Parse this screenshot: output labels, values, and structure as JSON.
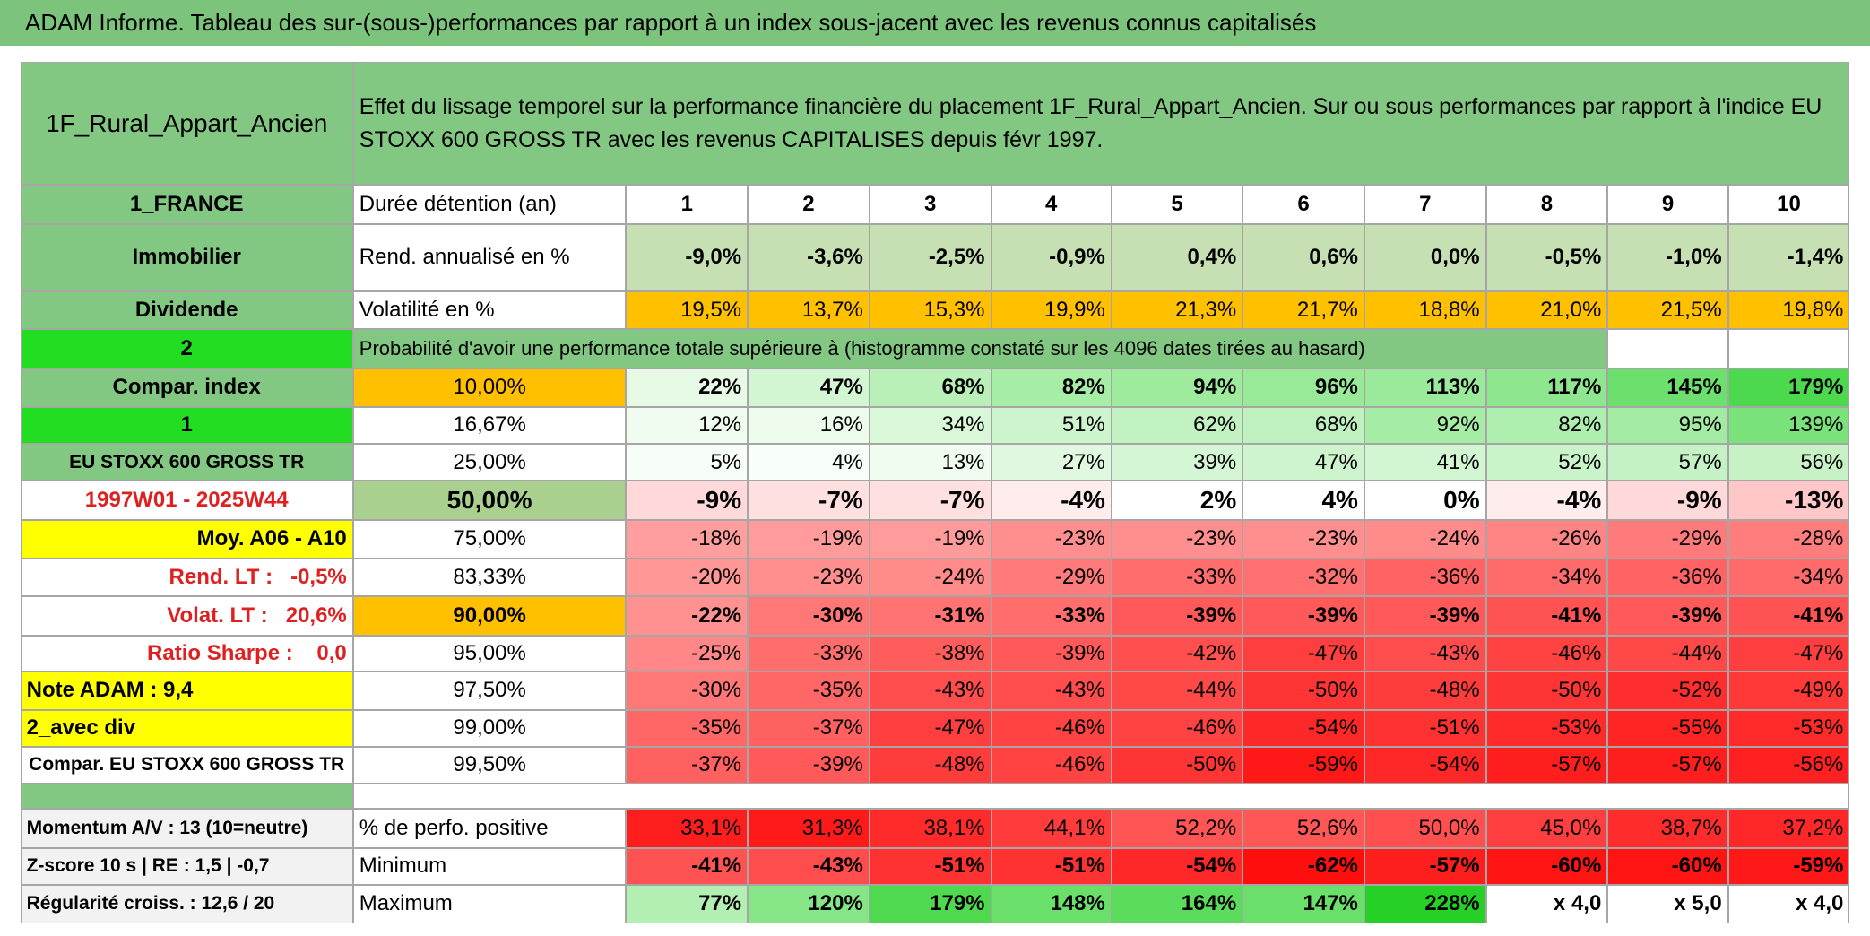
{
  "title": "ADAM Informe. Tableau des sur-(sous-)performances par rapport à un index sous-jacent avec les revenus connus capitalisés",
  "header": {
    "name": "1F_Rural_Appart_Ancien",
    "description": "Effet du lissage temporel sur la performance financière du placement 1F_Rural_Appart_Ancien. Sur ou sous performances par rapport à l'indice EU STOXX 600 GROSS TR avec les revenus CAPITALISES depuis févr 1997."
  },
  "rows": [
    {
      "label": "1_FRANCE",
      "label_color": "#82c882",
      "heading": "Durée détention (an)",
      "heading_color": "#ffffff",
      "cells": [
        "1",
        "2",
        "3",
        "4",
        "5",
        "6",
        "7",
        "8",
        "9",
        "10"
      ],
      "colors": "#ffffff"
    },
    {
      "label": "Immobilier",
      "label_color": "#82c882",
      "heading": "Rend. annualisé en %",
      "heading_color": "#ffffff",
      "cells": [
        "-9,0%",
        "-3,6%",
        "-2,5%",
        "-0,9%",
        "0,4%",
        "0,6%",
        "0,0%",
        "-0,5%",
        "-1,0%",
        "-1,4%"
      ],
      "colors": "#c6e0b4"
    },
    {
      "label": "Dividende",
      "label_color": "#82c882",
      "heading": "Volatilité en %",
      "heading_color": "#ffffff",
      "cells": [
        "19,5%",
        "13,7%",
        "15,3%",
        "19,9%",
        "21,3%",
        "21,7%",
        "18,8%",
        "21,0%",
        "21,5%",
        "19,8%"
      ],
      "colors": "#ffc000"
    },
    {
      "label": "2",
      "label_color": "#22dd22",
      "heading": "Probabilité d'avoir une performance totale supérieure à (histogramme constaté sur les 4096 dates tirées au hasard)",
      "heading_color": "#82c882"
    },
    {
      "label": "Compar. index",
      "label_color": "#82c882",
      "heading": "10,00%",
      "heading_color": "#ffc000",
      "cells": [
        "22%",
        "47%",
        "68%",
        "82%",
        "94%",
        "96%",
        "113%",
        "117%",
        "145%",
        "179%"
      ],
      "colors": [
        "#e6fae6",
        "#d2f6d2",
        "#b8f0b8",
        "#a6eda6",
        "#9eeb9e",
        "#98ea98",
        "#9be99b",
        "#8ee68e",
        "#6ddf6d",
        "#4dd94d"
      ]
    },
    {
      "label": "1",
      "label_color": "#22dd22",
      "heading": "16,67%",
      "heading_color": "#ffffff",
      "cells": [
        "12%",
        "16%",
        "34%",
        "51%",
        "62%",
        "68%",
        "92%",
        "82%",
        "95%",
        "139%"
      ],
      "colors": [
        "#f0fcf0",
        "#edfbed",
        "#d9f7d9",
        "#cdf5cd",
        "#c2f2c2",
        "#bef1be",
        "#a5eca5",
        "#aeeeae",
        "#a3eba3",
        "#7ae27a"
      ]
    },
    {
      "label": "EU STOXX 600 GROSS TR",
      "label_color": "#82c882",
      "heading": "25,00%",
      "heading_color": "#ffffff",
      "cells": [
        "5%",
        "4%",
        "13%",
        "27%",
        "39%",
        "47%",
        "41%",
        "52%",
        "57%",
        "56%"
      ],
      "colors": [
        "#f7fef7",
        "#f8fef8",
        "#f0fcf0",
        "#e0f8e0",
        "#d4f6d4",
        "#cdf4cd",
        "#d2f5d2",
        "#c9f3c9",
        "#c5f2c5",
        "#c6f2c6"
      ]
    },
    {
      "label": "1997W01 - 2025W44",
      "label_color": "#ffffff",
      "label_text_color": "#e02020",
      "heading": "50,00%",
      "heading_color": "#a9d08e",
      "cells": [
        "-9%",
        "-7%",
        "-7%",
        "-4%",
        "2%",
        "4%",
        "0%",
        "-4%",
        "-9%",
        "-13%"
      ],
      "colors": [
        "#ffd9d9",
        "#ffe0e0",
        "#ffe0e0",
        "#ffeded",
        "#ffffff",
        "#ffffff",
        "#ffffff",
        "#ffeded",
        "#ffd9d9",
        "#ffc7c7"
      ]
    },
    {
      "label": "Moy. A06 - A10",
      "label_color": "#ffff00",
      "heading": "75,00%",
      "heading_color": "#ffffff",
      "cells": [
        "-18%",
        "-19%",
        "-19%",
        "-23%",
        "-23%",
        "-23%",
        "-24%",
        "-26%",
        "-29%",
        "-28%"
      ],
      "colors": [
        "#ff9e9e",
        "#ff9b9b",
        "#ff9b9b",
        "#ff8e8e",
        "#ff8e8e",
        "#ff8e8e",
        "#ff8b8b",
        "#ff8484",
        "#ff7a7a",
        "#ff7d7d"
      ]
    },
    {
      "label": "Rend. LT :   -0,5%",
      "label_color": "#ffffff",
      "label_text_color": "#e02020",
      "heading": "83,33%",
      "heading_color": "#ffffff",
      "cells": [
        "-20%",
        "-23%",
        "-24%",
        "-29%",
        "-33%",
        "-32%",
        "-36%",
        "-34%",
        "-36%",
        "-34%"
      ],
      "colors": [
        "#ff9797",
        "#ff8e8e",
        "#ff8b8b",
        "#ff7a7a",
        "#ff6d6d",
        "#ff7070",
        "#ff6363",
        "#ff6a6a",
        "#ff6363",
        "#ff6a6a"
      ]
    },
    {
      "label": "Volat. LT :   20,6%",
      "label_color": "#ffffff",
      "label_text_color": "#e02020",
      "heading": "90,00%",
      "heading_color": "#ffc000",
      "cells": [
        "-22%",
        "-30%",
        "-31%",
        "-33%",
        "-39%",
        "-39%",
        "-39%",
        "-41%",
        "-39%",
        "-41%"
      ],
      "colors": [
        "#ff9191",
        "#ff7777",
        "#ff7373",
        "#ff6d6d",
        "#ff5959",
        "#ff5959",
        "#ff5959",
        "#ff5252",
        "#ff5959",
        "#ff5252"
      ]
    },
    {
      "label": "Ratio Sharpe :    0,0",
      "label_color": "#ffffff",
      "label_text_color": "#e02020",
      "heading": "95,00%",
      "heading_color": "#ffffff",
      "cells": [
        "-25%",
        "-33%",
        "-38%",
        "-39%",
        "-42%",
        "-47%",
        "-43%",
        "-46%",
        "-44%",
        "-47%"
      ],
      "colors": [
        "#ff8787",
        "#ff6d6d",
        "#ff5c5c",
        "#ff5959",
        "#ff4f4f",
        "#ff3f3f",
        "#ff4c4c",
        "#ff4242",
        "#ff4949",
        "#ff3f3f"
      ]
    },
    {
      "label": "Note ADAM : 9,4",
      "label_color": "#ffff00",
      "heading": "97,50%",
      "heading_color": "#ffffff",
      "cells": [
        "-30%",
        "-35%",
        "-43%",
        "-43%",
        "-44%",
        "-50%",
        "-48%",
        "-50%",
        "-52%",
        "-49%"
      ],
      "colors": [
        "#ff7777",
        "#ff6666",
        "#ff4c4c",
        "#ff4c4c",
        "#ff4949",
        "#ff3535",
        "#ff3c3c",
        "#ff3535",
        "#ff2e2e",
        "#ff3838"
      ]
    },
    {
      "label": "2_avec div",
      "label_color": "#ffff00",
      "heading": "99,00%",
      "heading_color": "#ffffff",
      "cells": [
        "-35%",
        "-37%",
        "-47%",
        "-46%",
        "-46%",
        "-54%",
        "-51%",
        "-53%",
        "-55%",
        "-53%"
      ],
      "colors": [
        "#ff6666",
        "#ff6060",
        "#ff3f3f",
        "#ff4242",
        "#ff4242",
        "#ff2828",
        "#ff3232",
        "#ff2b2b",
        "#ff2525",
        "#ff2b2b"
      ]
    },
    {
      "label": "Compar. EU STOXX 600 GROSS TR",
      "label_color": "#ffffff",
      "heading": "99,50%",
      "heading_color": "#ffffff",
      "cells": [
        "-37%",
        "-39%",
        "-48%",
        "-46%",
        "-50%",
        "-59%",
        "-54%",
        "-57%",
        "-57%",
        "-56%"
      ],
      "colors": [
        "#ff6060",
        "#ff5959",
        "#ff3c3c",
        "#ff4242",
        "#ff3535",
        "#ff1818",
        "#ff2828",
        "#ff1e1e",
        "#ff1e1e",
        "#ff2121"
      ]
    },
    {
      "label": "Momentum A/V : 13 (10=neutre)",
      "label_color": "#f2f2f2",
      "heading": "% de perfo. positive",
      "heading_color": "#ffffff",
      "cells": [
        "33,1%",
        "31,3%",
        "38,1%",
        "44,1%",
        "52,2%",
        "52,6%",
        "50,0%",
        "45,0%",
        "38,7%",
        "37,2%"
      ],
      "colors": [
        "#ff1e1e",
        "#ff1a1a",
        "#ff2a2a",
        "#ff3b3b",
        "#ff5555",
        "#ff5656",
        "#ff4f4f",
        "#ff3f3f",
        "#ff2c2c",
        "#ff2828"
      ]
    },
    {
      "label": "Z-score 10 s | RE : 1,5 | -0,7",
      "label_color": "#f2f2f2",
      "heading": "Minimum",
      "heading_color": "#ffffff",
      "cells": [
        "-41%",
        "-43%",
        "-51%",
        "-51%",
        "-54%",
        "-62%",
        "-57%",
        "-60%",
        "-60%",
        "-59%"
      ],
      "colors": [
        "#ff5252",
        "#ff4c4c",
        "#ff3232",
        "#ff3232",
        "#ff2828",
        "#ff0e0e",
        "#ff1e1e",
        "#ff1414",
        "#ff1414",
        "#ff1818"
      ]
    },
    {
      "label": "Régularité croiss. : 12,6 / 20",
      "label_color": "#f2f2f2",
      "heading": "Maximum",
      "heading_color": "#ffffff",
      "cells": [
        "77%",
        "120%",
        "179%",
        "148%",
        "164%",
        "147%",
        "228%",
        "x 4,0",
        "x 5,0",
        "x 4,0"
      ],
      "colors": [
        "#b3efb3",
        "#86e586",
        "#4fd94f",
        "#6adf6a",
        "#5cdc5c",
        "#6adf6a",
        "#26d026",
        "#ffffff",
        "#ffffff",
        "#ffffff"
      ]
    }
  ]
}
